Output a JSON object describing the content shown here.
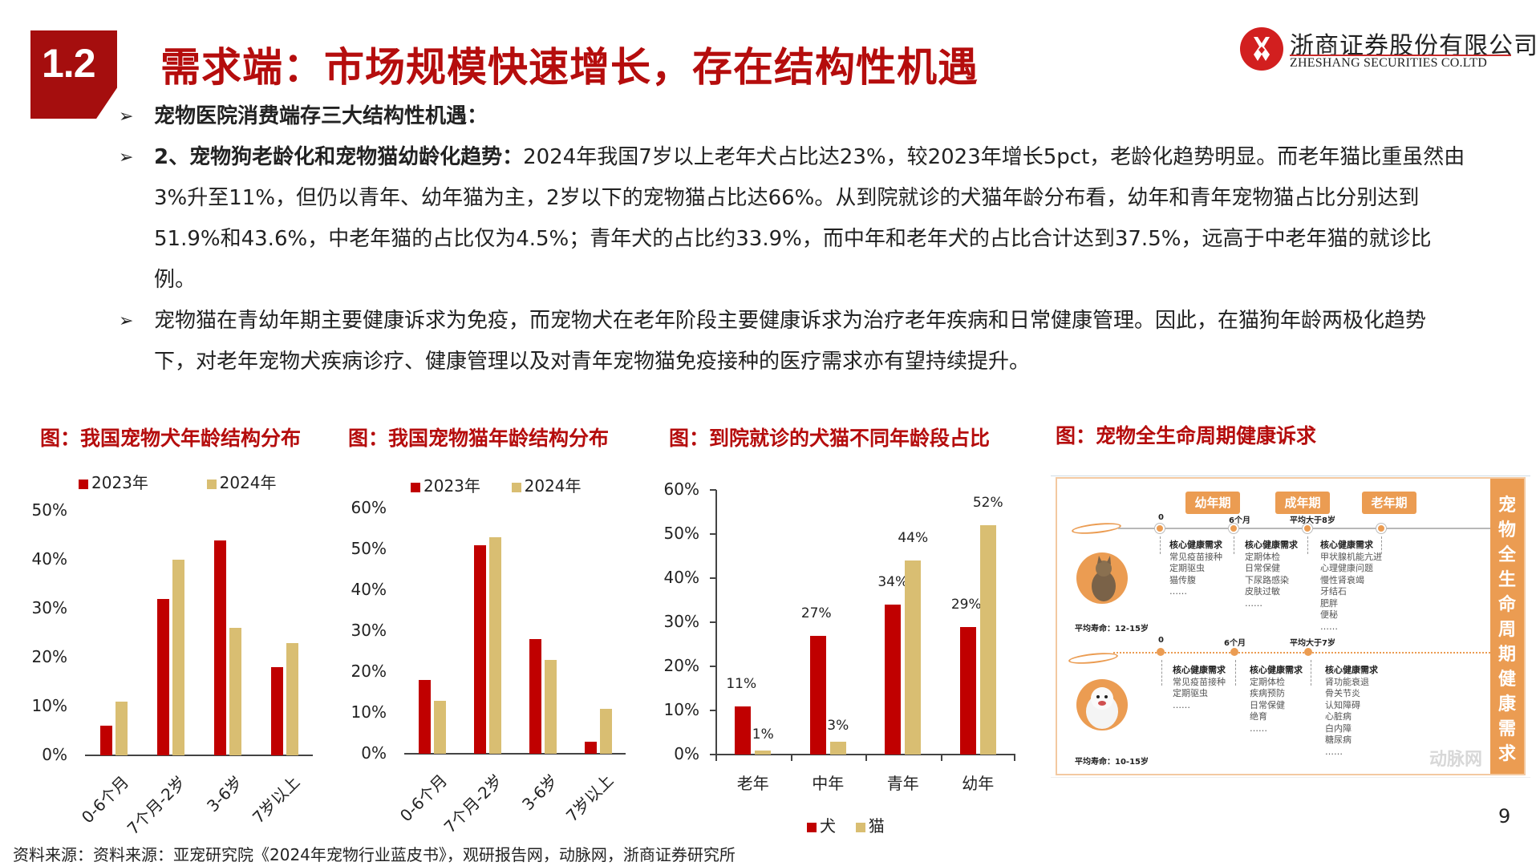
{
  "header": {
    "section_number": "1.2",
    "title": "需求端：市场规模快速增长，存在结构性机遇",
    "logo_cn": "浙商证券股份有限公司",
    "logo_en": "ZHESHANG SECURITIES CO.LTD"
  },
  "bullets": [
    {
      "bold": "宠物医院消费端存三大结构性机遇：",
      "text": ""
    },
    {
      "bold": "2、宠物狗老龄化和宠物猫幼龄化趋势：",
      "text": "2024年我国7岁以上老年犬占比达23%，较2023年增长5pct，老龄化趋势明显。而老年猫比重虽然由3%升至11%，但仍以青年、幼年猫为主，2岁以下的宠物猫占比达66%。从到院就诊的犬猫年龄分布看，幼年和青年宠物猫占比分别达到51.9%和43.6%，中老年猫的占比仅为4.5%；青年犬的占比约33.9%，而中年和老年犬的占比合计达到37.5%，远高于中老年猫的就诊比例。"
    },
    {
      "bold": "",
      "text": "宠物猫在青幼年期主要健康诉求为免疫，而宠物犬在老年阶段主要健康诉求为治疗老年疾病和日常健康管理。因此，在猫狗年龄两极化趋势下，对老年宠物犬疾病诊疗、健康管理以及对青年宠物猫免疫接种的医疗需求亦有望持续提升。"
    }
  ],
  "chart_data": [
    {
      "type": "bar",
      "title": "图：我国宠物犬年龄结构分布",
      "categories": [
        "0-6个月",
        "7个月-2岁",
        "3-6岁",
        "7岁以上"
      ],
      "series": [
        {
          "name": "2023年",
          "color": "#c00000",
          "values": [
            6,
            32,
            44,
            18
          ]
        },
        {
          "name": "2024年",
          "color": "#d9be72",
          "values": [
            11,
            40,
            26,
            23
          ]
        }
      ],
      "yticks": [
        "0%",
        "10%",
        "20%",
        "30%",
        "40%",
        "50%"
      ],
      "ylim": [
        0,
        50
      ],
      "xlabel": "",
      "ylabel": "",
      "legend_position": "top",
      "grid": false
    },
    {
      "type": "bar",
      "title": "图：我国宠物猫年龄结构分布",
      "categories": [
        "0-6个月",
        "7个月-2岁",
        "3-6岁",
        "7岁以上"
      ],
      "series": [
        {
          "name": "2023年",
          "color": "#c00000",
          "values": [
            18,
            51,
            28,
            3
          ]
        },
        {
          "name": "2024年",
          "color": "#d9be72",
          "values": [
            13,
            53,
            23,
            11
          ]
        }
      ],
      "yticks": [
        "0%",
        "10%",
        "20%",
        "30%",
        "40%",
        "50%",
        "60%"
      ],
      "ylim": [
        0,
        60
      ],
      "xlabel": "",
      "ylabel": "",
      "legend_position": "top",
      "grid": false
    },
    {
      "type": "bar",
      "title": "图：到院就诊的犬猫不同年龄段占比",
      "categories": [
        "老年",
        "中年",
        "青年",
        "幼年"
      ],
      "series": [
        {
          "name": "犬",
          "color": "#c00000",
          "values": [
            11,
            27,
            34,
            29
          ],
          "labels": [
            "11%",
            "27%",
            "34%",
            "29%"
          ]
        },
        {
          "name": "猫",
          "color": "#d9be72",
          "values": [
            1,
            3,
            44,
            52
          ],
          "labels": [
            "1%",
            "3%",
            "44%",
            "52%"
          ]
        }
      ],
      "yticks": [
        "0%",
        "10%",
        "20%",
        "30%",
        "40%",
        "50%",
        "60%"
      ],
      "ylim": [
        0,
        60
      ],
      "xlabel": "",
      "ylabel": "",
      "legend_position": "bottom",
      "grid": false
    }
  ],
  "infographic": {
    "title": "图：宠物全生命周期健康诉求",
    "side_label": "宠物全生命周期健康需求",
    "stages": [
      "幼年期",
      "成年期",
      "老年期"
    ],
    "cat": {
      "milestones": [
        "0",
        "6个月",
        "平均大于8岁"
      ],
      "lifespan": "平均寿命：12-15岁",
      "needs": [
        {
          "header": "核心健康需求",
          "items": [
            "常见疫苗接种",
            "定期驱虫",
            "猫传腹",
            "……"
          ]
        },
        {
          "header": "核心健康需求",
          "items": [
            "定期体检",
            "日常保健",
            "下尿路感染",
            "皮肤过敏",
            "……"
          ]
        },
        {
          "header": "核心健康需求",
          "items": [
            "甲状腺机能亢进",
            "心理健康问题",
            "慢性肾衰竭",
            "牙结石",
            "肥胖",
            "便秘",
            "……"
          ]
        }
      ]
    },
    "dog": {
      "milestones": [
        "0",
        "6个月",
        "平均大于7岁"
      ],
      "lifespan": "平均寿命：10-15岁",
      "needs": [
        {
          "header": "核心健康需求",
          "items": [
            "常见疫苗接种",
            "定期驱虫",
            "……"
          ]
        },
        {
          "header": "核心健康需求",
          "items": [
            "定期体检",
            "疾病预防",
            "日常保健",
            "绝育",
            "……"
          ]
        },
        {
          "header": "核心健康需求",
          "items": [
            "肾功能衰退",
            "骨关节炎",
            "认知障碍",
            "心脏病",
            "白内障",
            "糖尿病",
            "……"
          ]
        }
      ]
    },
    "watermark": "动脉网"
  },
  "footer": {
    "source": "资料来源：资料来源：亚宠研究院《2024年宠物行业蓝皮书》，观研报告网，动脉网，浙商证券研究所",
    "page_number": "9"
  }
}
